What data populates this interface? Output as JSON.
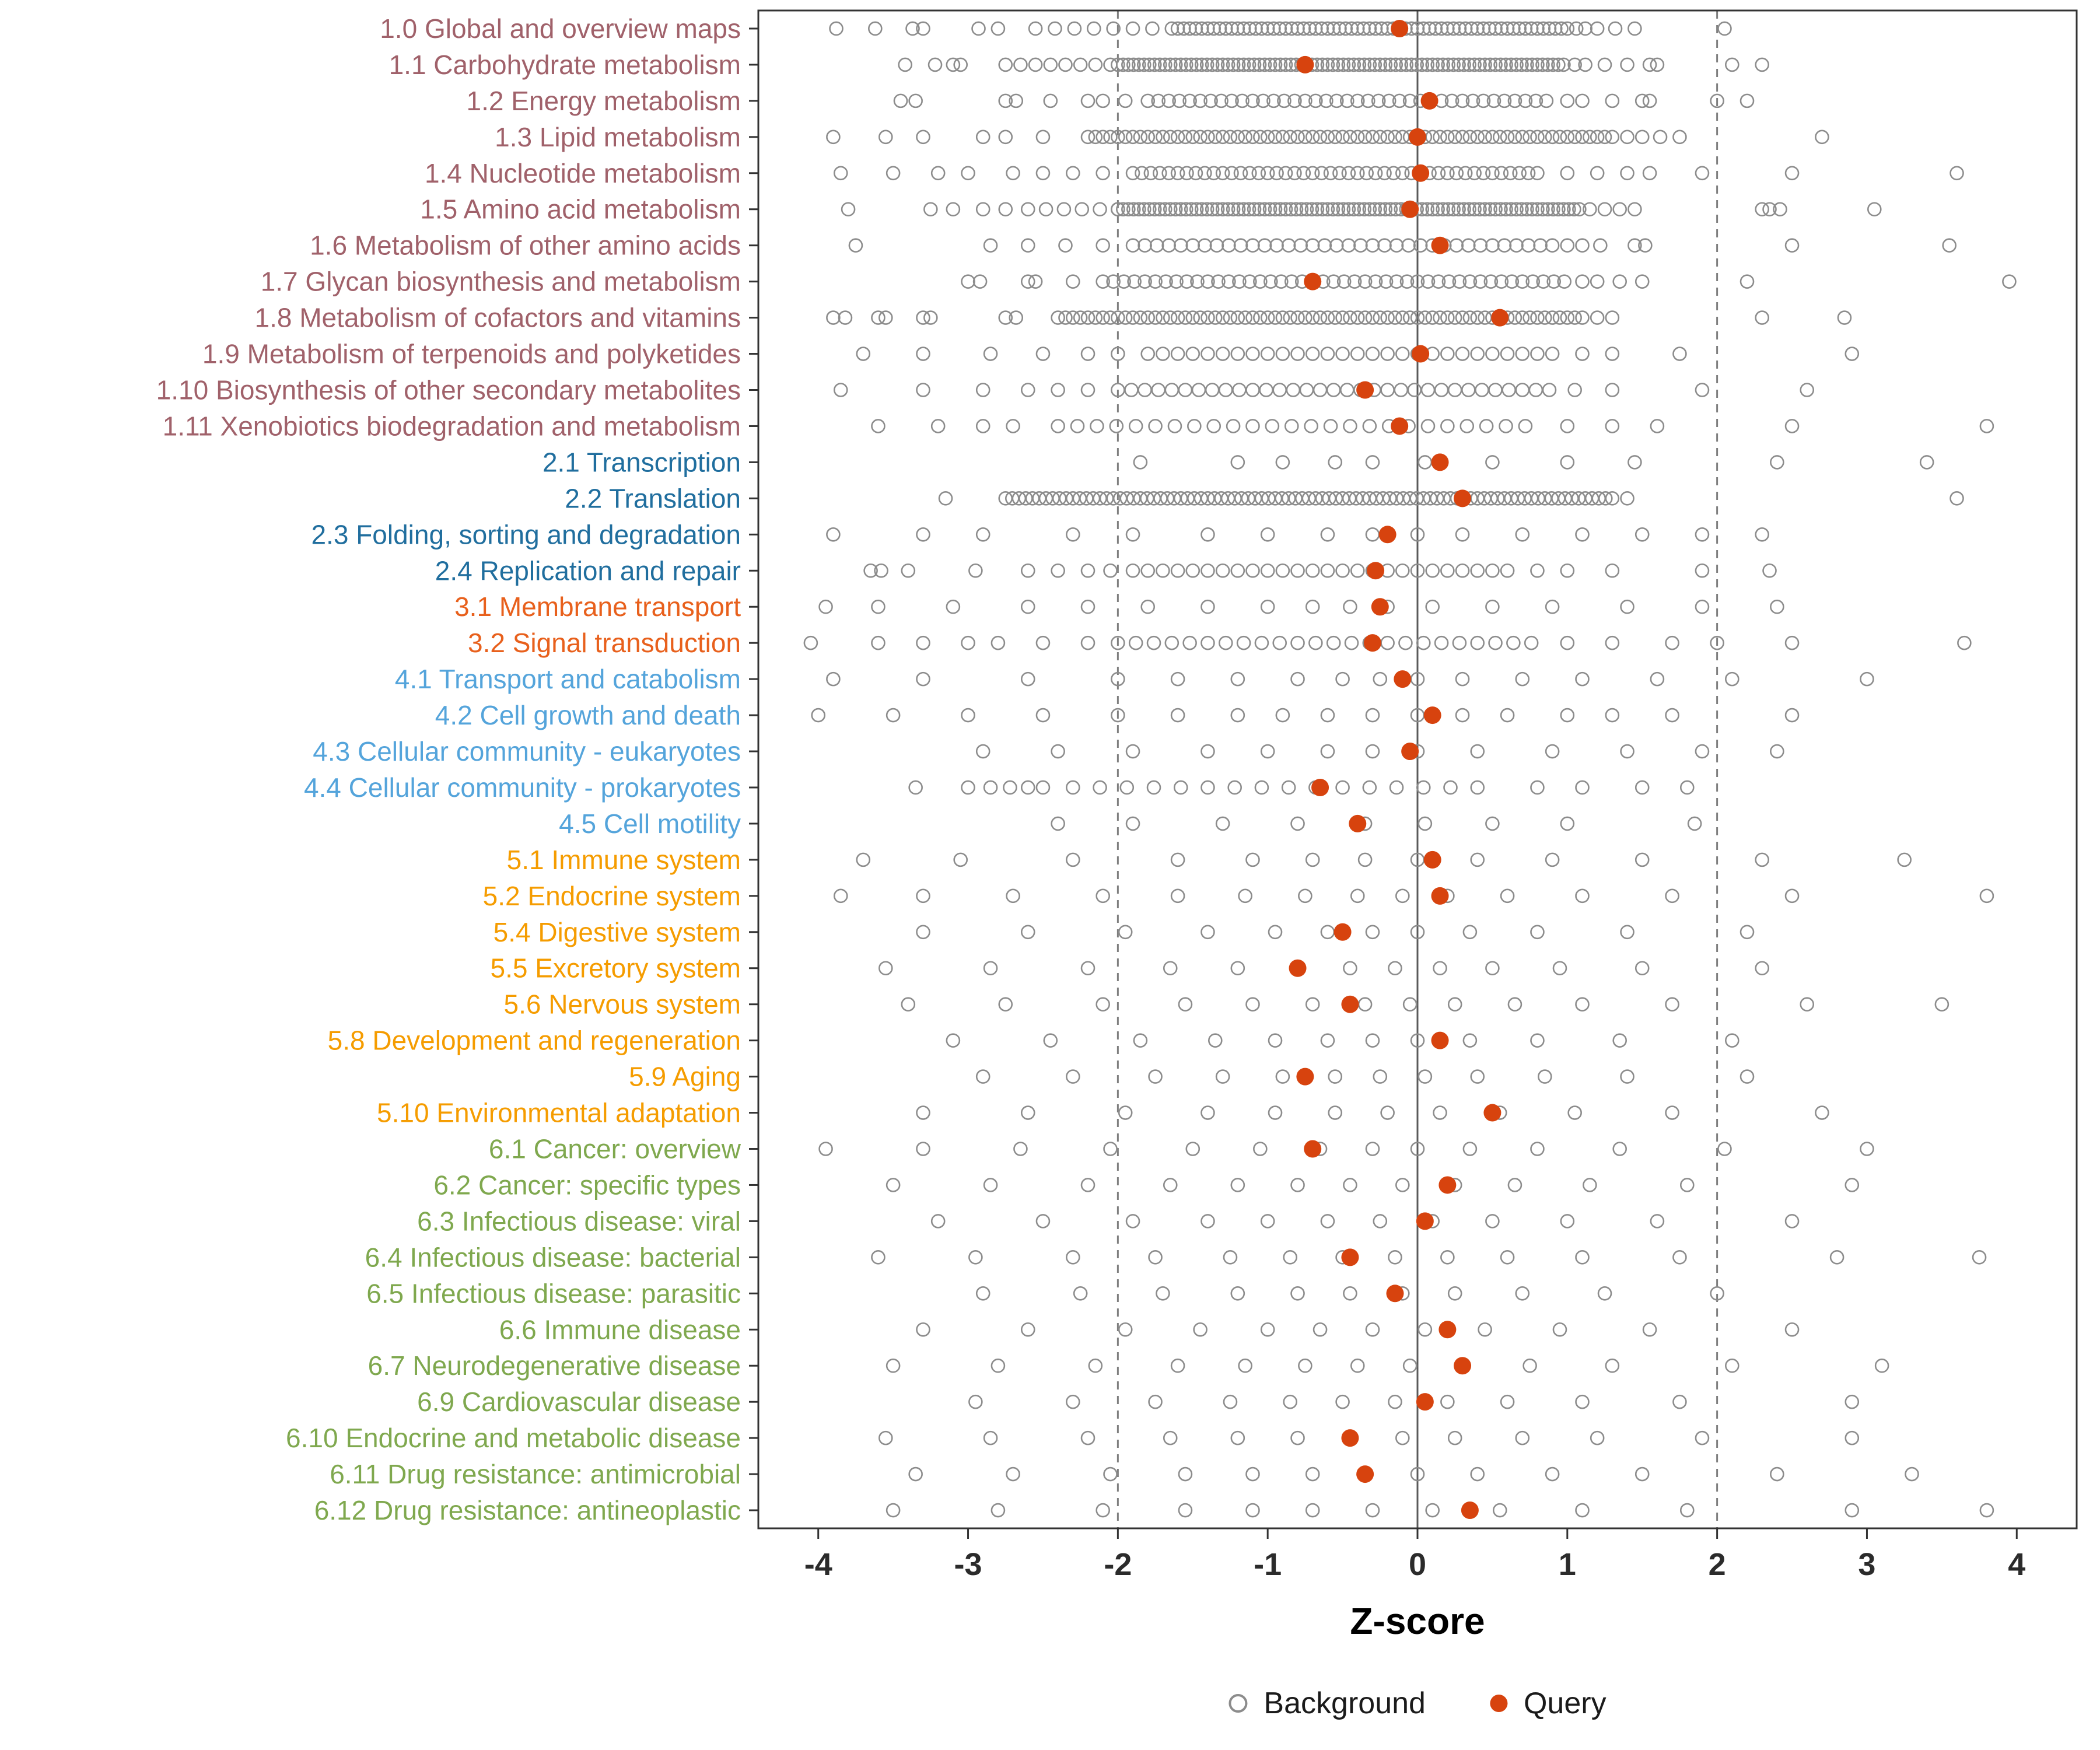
{
  "figure": {
    "xlabel": "Z-score",
    "legend": {
      "background_label": "Background",
      "query_label": "Query"
    }
  },
  "chart_data": {
    "type": "scatter",
    "title": "",
    "xlabel": "Z-score",
    "ylabel": "",
    "xlim": [
      -4.4,
      4.4
    ],
    "x_ticks": [
      -4,
      -3,
      -2,
      -1,
      0,
      1,
      2,
      3,
      4
    ],
    "grid": false,
    "legend_position": "bottom",
    "reference_lines": {
      "solid": [
        0
      ],
      "dashed": [
        -2,
        2
      ]
    },
    "legend": [
      {
        "label": "Background",
        "marker": "open-circle",
        "color": "#8C8C8C"
      },
      {
        "label": "Query",
        "marker": "filled-circle",
        "color": "#D7430E"
      }
    ],
    "group_colors": {
      "1": "#A0616A",
      "2": "#206E9E",
      "3": "#E8601C",
      "4": "#54A4DB",
      "5": "#F59C00",
      "6": "#7FA84E"
    },
    "background_style": {
      "stroke": "#8C8C8C",
      "fill": "none"
    },
    "rows": [
      {
        "label": "1.0 Global and overview maps",
        "group": "1",
        "query": -0.12,
        "background_bands": [
          [
            -1.6,
            1.0,
            0.04
          ],
          [
            -2.55,
            -1.6,
            0.13
          ]
        ],
        "background_points": [
          -3.88,
          -3.62,
          -3.37,
          -3.3,
          -2.93,
          -2.8,
          1.06,
          1.12,
          1.2,
          1.32,
          1.45,
          2.05
        ]
      },
      {
        "label": "1.1 Carbohydrate metabolism",
        "group": "1",
        "query": -0.75,
        "background_bands": [
          [
            -2.0,
            1.0,
            0.035
          ],
          [
            -2.75,
            -2.0,
            0.1
          ]
        ],
        "background_points": [
          -3.42,
          -3.22,
          -3.1,
          -3.05,
          1.05,
          1.12,
          1.25,
          1.4,
          1.55,
          1.6,
          2.1,
          2.3
        ]
      },
      {
        "label": "1.2 Energy metabolism",
        "group": "1",
        "query": 0.08,
        "background_bands": [
          [
            -1.8,
            0.9,
            0.07
          ]
        ],
        "background_points": [
          -3.45,
          -3.35,
          -2.75,
          -2.68,
          -2.45,
          -2.2,
          -2.1,
          -1.95,
          1.0,
          1.1,
          1.3,
          1.5,
          1.55,
          2.0,
          2.2
        ]
      },
      {
        "label": "1.3 Lipid metabolism",
        "group": "1",
        "query": 0.0,
        "background_bands": [
          [
            -2.2,
            1.3,
            0.05
          ]
        ],
        "background_points": [
          -3.9,
          -3.55,
          -3.3,
          -2.9,
          -2.75,
          -2.5,
          1.4,
          1.5,
          1.62,
          1.75,
          2.7
        ]
      },
      {
        "label": "1.4 Nucleotide metabolism",
        "group": "1",
        "query": 0.02,
        "background_bands": [
          [
            -1.9,
            0.8,
            0.06
          ]
        ],
        "background_points": [
          -3.85,
          -3.5,
          -3.2,
          -3.0,
          -2.7,
          -2.5,
          -2.3,
          -2.1,
          1.0,
          1.2,
          1.4,
          1.55,
          1.9,
          2.5,
          3.6
        ]
      },
      {
        "label": "1.5 Amino acid metabolism",
        "group": "1",
        "query": -0.05,
        "background_bands": [
          [
            -2.0,
            1.1,
            0.035
          ],
          [
            -2.6,
            -2.0,
            0.12
          ]
        ],
        "background_points": [
          -3.8,
          -3.25,
          -3.1,
          -2.9,
          -2.75,
          1.15,
          1.25,
          1.35,
          1.45,
          2.3,
          2.35,
          2.42,
          3.05
        ]
      },
      {
        "label": "1.6 Metabolism of other amino acids",
        "group": "1",
        "query": 0.15,
        "background_bands": [
          [
            -1.9,
            0.9,
            0.08
          ]
        ],
        "background_points": [
          -3.75,
          -2.85,
          -2.6,
          -2.35,
          -2.1,
          1.0,
          1.1,
          1.22,
          1.45,
          1.52,
          2.5,
          3.55
        ]
      },
      {
        "label": "1.7 Glycan biosynthesis and metabolism",
        "group": "1",
        "query": -0.7,
        "background_bands": [
          [
            -2.1,
            1.0,
            0.07
          ]
        ],
        "background_points": [
          -3.0,
          -2.92,
          -2.6,
          -2.55,
          -2.3,
          1.1,
          1.2,
          1.35,
          1.5,
          2.2,
          3.95
        ]
      },
      {
        "label": "1.8 Metabolism of cofactors and vitamins",
        "group": "1",
        "query": 0.55,
        "background_bands": [
          [
            -2.4,
            1.1,
            0.05
          ]
        ],
        "background_points": [
          -3.9,
          -3.82,
          -3.6,
          -3.55,
          -3.3,
          -3.25,
          -2.75,
          -2.68,
          1.2,
          1.3,
          2.3,
          2.85
        ]
      },
      {
        "label": "1.9 Metabolism of terpenoids and polyketides",
        "group": "1",
        "query": 0.02,
        "background_bands": [
          [
            -1.8,
            0.9,
            0.1
          ]
        ],
        "background_points": [
          -3.7,
          -3.3,
          -2.85,
          -2.5,
          -2.2,
          -2.0,
          1.1,
          1.3,
          1.75,
          2.9
        ]
      },
      {
        "label": "1.10 Biosynthesis of other secondary metabolites",
        "group": "1",
        "query": -0.35,
        "background_bands": [
          [
            -2.0,
            0.9,
            0.09
          ]
        ],
        "background_points": [
          -3.85,
          -3.3,
          -2.9,
          -2.6,
          -2.4,
          -2.2,
          1.05,
          1.3,
          1.9,
          2.6
        ]
      },
      {
        "label": "1.11 Xenobiotics biodegradation and metabolism",
        "group": "1",
        "query": -0.12,
        "background_bands": [
          [
            -2.4,
            0.8,
            0.13
          ]
        ],
        "background_points": [
          -3.6,
          -3.2,
          -2.9,
          -2.7,
          1.0,
          1.3,
          1.6,
          2.5,
          3.8
        ]
      },
      {
        "label": "2.1 Transcription",
        "group": "2",
        "query": 0.15,
        "background_bands": [],
        "background_points": [
          -1.85,
          -1.2,
          -0.9,
          -0.55,
          -0.3,
          0.05,
          0.5,
          1.0,
          1.45,
          2.4,
          3.4
        ]
      },
      {
        "label": "2.2 Translation",
        "group": "2",
        "query": 0.3,
        "background_bands": [
          [
            -2.75,
            1.3,
            0.045
          ]
        ],
        "background_points": [
          -3.15,
          1.4,
          3.6
        ]
      },
      {
        "label": "2.3 Folding, sorting and degradation",
        "group": "2",
        "query": -0.2,
        "background_bands": [],
        "background_points": [
          -3.9,
          -3.3,
          -2.9,
          -2.3,
          -1.9,
          -1.4,
          -1.0,
          -0.6,
          -0.3,
          0.0,
          0.3,
          0.7,
          1.1,
          1.5,
          1.9,
          2.3
        ]
      },
      {
        "label": "2.4 Replication and repair",
        "group": "2",
        "query": -0.28,
        "background_bands": [
          [
            -1.9,
            0.6,
            0.1
          ]
        ],
        "background_points": [
          -3.65,
          -3.58,
          -3.4,
          -2.95,
          -2.6,
          -2.4,
          -2.2,
          -2.05,
          0.8,
          1.0,
          1.3,
          1.9,
          2.35
        ]
      },
      {
        "label": "3.1 Membrane transport",
        "group": "3",
        "query": -0.25,
        "background_bands": [],
        "background_points": [
          -3.95,
          -3.6,
          -3.1,
          -2.6,
          -2.2,
          -1.8,
          -1.4,
          -1.0,
          -0.7,
          -0.45,
          -0.2,
          0.1,
          0.5,
          0.9,
          1.4,
          1.9,
          2.4
        ]
      },
      {
        "label": "3.2 Signal transduction",
        "group": "3",
        "query": -0.3,
        "background_bands": [
          [
            -2.0,
            0.8,
            0.12
          ]
        ],
        "background_points": [
          -4.05,
          -3.6,
          -3.3,
          -3.0,
          -2.8,
          -2.5,
          -2.2,
          1.0,
          1.3,
          1.7,
          2.0,
          2.5,
          3.65
        ]
      },
      {
        "label": "4.1 Transport and catabolism",
        "group": "4",
        "query": -0.1,
        "background_bands": [],
        "background_points": [
          -3.9,
          -3.3,
          -2.6,
          -2.0,
          -1.6,
          -1.2,
          -0.8,
          -0.5,
          -0.25,
          0.0,
          0.3,
          0.7,
          1.1,
          1.6,
          2.1,
          3.0
        ]
      },
      {
        "label": "4.2 Cell growth and death",
        "group": "4",
        "query": 0.1,
        "background_bands": [],
        "background_points": [
          -4.0,
          -3.5,
          -3.0,
          -2.5,
          -2.0,
          -1.6,
          -1.2,
          -0.9,
          -0.6,
          -0.3,
          0.0,
          0.3,
          0.6,
          1.0,
          1.3,
          1.7,
          2.5
        ]
      },
      {
        "label": "4.3 Cellular community - eukaryotes",
        "group": "4",
        "query": -0.05,
        "background_bands": [],
        "background_points": [
          -2.9,
          -2.4,
          -1.9,
          -1.4,
          -1.0,
          -0.6,
          -0.3,
          0.0,
          0.4,
          0.9,
          1.4,
          1.9,
          2.4
        ]
      },
      {
        "label": "4.4 Cellular community - prokaryotes",
        "group": "4",
        "query": -0.65,
        "background_bands": [
          [
            -2.3,
            0.5,
            0.18
          ]
        ],
        "background_points": [
          -3.35,
          -3.0,
          -2.85,
          -2.72,
          -2.6,
          -2.5,
          0.8,
          1.1,
          1.5,
          1.8
        ]
      },
      {
        "label": "4.5 Cell motility",
        "group": "4",
        "query": -0.4,
        "background_bands": [],
        "background_points": [
          -2.4,
          -1.9,
          -1.3,
          -0.8,
          -0.35,
          0.05,
          0.5,
          1.0,
          1.85
        ]
      },
      {
        "label": "5.1 Immune system",
        "group": "5",
        "query": 0.1,
        "background_bands": [],
        "background_points": [
          -3.7,
          -3.05,
          -2.3,
          -1.6,
          -1.1,
          -0.7,
          -0.35,
          0.0,
          0.4,
          0.9,
          1.5,
          2.3,
          3.25
        ]
      },
      {
        "label": "5.2 Endocrine system",
        "group": "5",
        "query": 0.15,
        "background_bands": [],
        "background_points": [
          -3.85,
          -3.3,
          -2.7,
          -2.1,
          -1.6,
          -1.15,
          -0.75,
          -0.4,
          -0.1,
          0.2,
          0.6,
          1.1,
          1.7,
          2.5,
          3.8
        ]
      },
      {
        "label": "5.4 Digestive system",
        "group": "5",
        "query": -0.5,
        "background_bands": [],
        "background_points": [
          -3.3,
          -2.6,
          -1.95,
          -1.4,
          -0.95,
          -0.6,
          -0.3,
          0.0,
          0.35,
          0.8,
          1.4,
          2.2
        ]
      },
      {
        "label": "5.5 Excretory system",
        "group": "5",
        "query": -0.8,
        "background_bands": [],
        "background_points": [
          -3.55,
          -2.85,
          -2.2,
          -1.65,
          -1.2,
          -0.8,
          -0.45,
          -0.15,
          0.15,
          0.5,
          0.95,
          1.5,
          2.3
        ]
      },
      {
        "label": "5.6 Nervous system",
        "group": "5",
        "query": -0.45,
        "background_bands": [],
        "background_points": [
          -3.4,
          -2.75,
          -2.1,
          -1.55,
          -1.1,
          -0.7,
          -0.35,
          -0.05,
          0.25,
          0.65,
          1.1,
          1.7,
          2.6,
          3.5
        ]
      },
      {
        "label": "5.8 Development and regeneration",
        "group": "5",
        "query": 0.15,
        "background_bands": [],
        "background_points": [
          -3.1,
          -2.45,
          -1.85,
          -1.35,
          -0.95,
          -0.6,
          -0.3,
          0.0,
          0.35,
          0.8,
          1.35,
          2.1
        ]
      },
      {
        "label": "5.9 Aging",
        "group": "5",
        "query": -0.75,
        "background_bands": [],
        "background_points": [
          -2.9,
          -2.3,
          -1.75,
          -1.3,
          -0.9,
          -0.55,
          -0.25,
          0.05,
          0.4,
          0.85,
          1.4,
          2.2
        ]
      },
      {
        "label": "5.10 Environmental adaptation",
        "group": "5",
        "query": 0.5,
        "background_bands": [],
        "background_points": [
          -3.3,
          -2.6,
          -1.95,
          -1.4,
          -0.95,
          -0.55,
          -0.2,
          0.15,
          0.55,
          1.05,
          1.7,
          2.7
        ]
      },
      {
        "label": "6.1 Cancer: overview",
        "group": "6",
        "query": -0.7,
        "background_bands": [],
        "background_points": [
          -3.95,
          -3.3,
          -2.65,
          -2.05,
          -1.5,
          -1.05,
          -0.65,
          -0.3,
          0.0,
          0.35,
          0.8,
          1.35,
          2.05,
          3.0
        ]
      },
      {
        "label": "6.2 Cancer: specific types",
        "group": "6",
        "query": 0.2,
        "background_bands": [],
        "background_points": [
          -3.5,
          -2.85,
          -2.2,
          -1.65,
          -1.2,
          -0.8,
          -0.45,
          -0.1,
          0.25,
          0.65,
          1.15,
          1.8,
          2.9
        ]
      },
      {
        "label": "6.3 Infectious disease: viral",
        "group": "6",
        "query": 0.05,
        "background_bands": [],
        "background_points": [
          -3.2,
          -2.5,
          -1.9,
          -1.4,
          -1.0,
          -0.6,
          -0.25,
          0.1,
          0.5,
          1.0,
          1.6,
          2.5
        ]
      },
      {
        "label": "6.4 Infectious disease: bacterial",
        "group": "6",
        "query": -0.45,
        "background_bands": [],
        "background_points": [
          -3.6,
          -2.95,
          -2.3,
          -1.75,
          -1.25,
          -0.85,
          -0.5,
          -0.15,
          0.2,
          0.6,
          1.1,
          1.75,
          2.8,
          3.75
        ]
      },
      {
        "label": "6.5 Infectious disease: parasitic",
        "group": "6",
        "query": -0.15,
        "background_bands": [],
        "background_points": [
          -2.9,
          -2.25,
          -1.7,
          -1.2,
          -0.8,
          -0.45,
          -0.1,
          0.25,
          0.7,
          1.25,
          2.0
        ]
      },
      {
        "label": "6.6 Immune disease",
        "group": "6",
        "query": 0.2,
        "background_bands": [],
        "background_points": [
          -3.3,
          -2.6,
          -1.95,
          -1.45,
          -1.0,
          -0.65,
          -0.3,
          0.05,
          0.45,
          0.95,
          1.55,
          2.5
        ]
      },
      {
        "label": "6.7 Neurodegenerative disease",
        "group": "6",
        "query": 0.3,
        "background_bands": [],
        "background_points": [
          -3.5,
          -2.8,
          -2.15,
          -1.6,
          -1.15,
          -0.75,
          -0.4,
          -0.05,
          0.3,
          0.75,
          1.3,
          2.1,
          3.1
        ]
      },
      {
        "label": "6.9 Cardiovascular disease",
        "group": "6",
        "query": 0.05,
        "background_bands": [],
        "background_points": [
          -2.95,
          -2.3,
          -1.75,
          -1.25,
          -0.85,
          -0.5,
          -0.15,
          0.2,
          0.6,
          1.1,
          1.75,
          2.9
        ]
      },
      {
        "label": "6.10 Endocrine and metabolic disease",
        "group": "6",
        "query": -0.45,
        "background_bands": [],
        "background_points": [
          -3.55,
          -2.85,
          -2.2,
          -1.65,
          -1.2,
          -0.8,
          -0.45,
          -0.1,
          0.25,
          0.7,
          1.2,
          1.9,
          2.9
        ]
      },
      {
        "label": "6.11 Drug resistance: antimicrobial",
        "group": "6",
        "query": -0.35,
        "background_bands": [],
        "background_points": [
          -3.35,
          -2.7,
          -2.05,
          -1.55,
          -1.1,
          -0.7,
          -0.35,
          0.0,
          0.4,
          0.9,
          1.5,
          2.4,
          3.3
        ]
      },
      {
        "label": "6.12 Drug resistance: antineoplastic",
        "group": "6",
        "query": 0.35,
        "background_bands": [],
        "background_points": [
          -3.5,
          -2.8,
          -2.1,
          -1.55,
          -1.1,
          -0.7,
          -0.3,
          0.1,
          0.55,
          1.1,
          1.8,
          2.9,
          3.8
        ]
      }
    ]
  }
}
